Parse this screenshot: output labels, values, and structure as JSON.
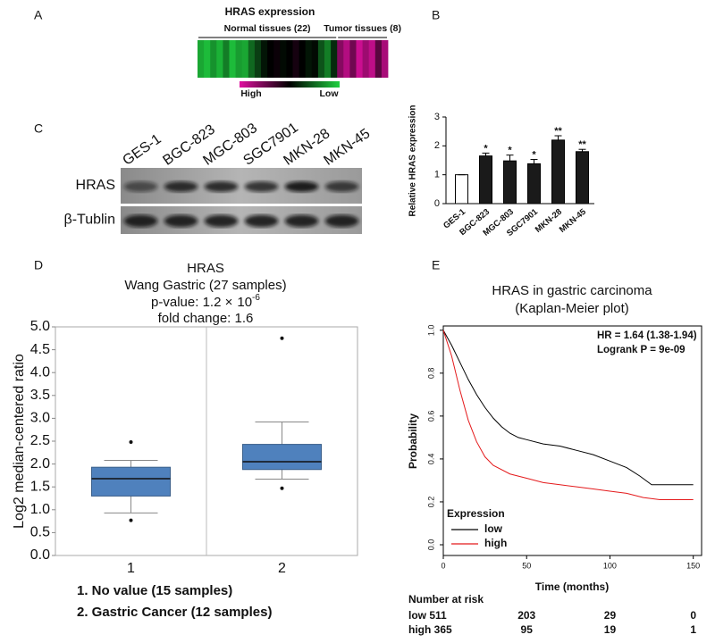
{
  "panel_labels": [
    "A",
    "B",
    "C",
    "D",
    "E"
  ],
  "blot": {
    "lanes": [
      "GES-1",
      "BGC-823",
      "MGC-803",
      "SGC7901",
      "MKN-28",
      "MKN-45"
    ],
    "rows": [
      "HRAS",
      "β-Tublin"
    ]
  },
  "chart_data": [
    {
      "type": "heatmap",
      "title": "HRAS expression",
      "groups": [
        {
          "name": "Normal tissues (22)",
          "count": 22
        },
        {
          "name": "Tumor tissues (8)",
          "count": 8
        }
      ],
      "values": [
        -0.8,
        -0.9,
        -0.7,
        -0.85,
        -0.6,
        -0.9,
        -0.75,
        -0.8,
        -0.5,
        -0.3,
        -0.1,
        0,
        0.05,
        -0.05,
        0,
        0.1,
        0,
        -0.1,
        -0.05,
        -0.4,
        -0.6,
        -0.2,
        0.6,
        0.8,
        0.5,
        0.9,
        0.7,
        0.85,
        0.4,
        0.75
      ],
      "colorbar_labels": [
        "High",
        "Low"
      ],
      "high_color": "#e010a0",
      "low_color": "#20d040"
    },
    {
      "type": "bar",
      "ylabel": "Relative HRAS expression",
      "categories": [
        "GES-1",
        "BGC-823",
        "MGC-803",
        "SGC7901",
        "MKN-28",
        "MKN-45"
      ],
      "values": [
        1,
        1.65,
        1.48,
        1.38,
        2.2,
        1.8
      ],
      "errors": [
        0,
        0.1,
        0.2,
        0.15,
        0.15,
        0.08
      ],
      "annotations": [
        null,
        "*",
        "*",
        "*",
        "**",
        "**"
      ],
      "colors": [
        "#ffffff",
        "#1a1a1a",
        "#1a1a1a",
        "#1a1a1a",
        "#1a1a1a",
        "#1a1a1a"
      ],
      "ylim": [
        0,
        3
      ],
      "yticks": [
        0,
        1,
        2,
        3
      ]
    },
    {
      "type": "box",
      "title": [
        "HRAS",
        "Wang Gastric (27 samples)"
      ],
      "pvalue": {
        "text": "p-value: 1.2 ×",
        "base": "10",
        "exponent": "-6"
      },
      "fold_change": "fold change: 1.6",
      "ylabel": "Log2 median-centered ratio",
      "categories": [
        "1",
        "2"
      ],
      "boxes": [
        {
          "whislo": 0.93,
          "q1": 1.3,
          "med": 1.68,
          "q3": 1.93,
          "whishi": 2.08,
          "fliers": [
            0.77,
            2.48
          ]
        },
        {
          "whislo": 1.67,
          "q1": 1.88,
          "med": 2.05,
          "q3": 2.43,
          "whishi": 2.92,
          "fliers": [
            1.47,
            4.75
          ]
        }
      ],
      "color": "#4f81bd",
      "ylim": [
        0,
        5
      ],
      "yticks": [
        {
          "value": 0,
          "label": "0.0"
        },
        {
          "value": 0.5,
          "label": "0.5"
        },
        {
          "value": 1,
          "label": "1.0"
        },
        {
          "value": 1.5,
          "label": "1.5"
        },
        {
          "value": 2,
          "label": "2.0"
        },
        {
          "value": 2.5,
          "label": "2.5"
        },
        {
          "value": 3,
          "label": "3.0"
        },
        {
          "value": 3.5,
          "label": "3.5"
        },
        {
          "value": 4,
          "label": "4.0"
        },
        {
          "value": 4.5,
          "label": "4.5"
        },
        {
          "value": 5,
          "label": "5.0"
        }
      ],
      "notes": [
        "1.  No value (15 samples)",
        "2.  Gastric Cancer (12 samples)"
      ]
    },
    {
      "type": "line",
      "title": [
        "HRAS in gastric carcinoma",
        "(Kaplan-Meier plot)"
      ],
      "annotations": [
        "HR = 1.64 (1.38-1.94)",
        "Logrank P = 9e-09"
      ],
      "xlabel": "Time (months)",
      "ylabel": "Probability",
      "xlim": [
        0,
        155
      ],
      "xticks": [
        0,
        50,
        100,
        150
      ],
      "ylim": [
        -0.05,
        1.02
      ],
      "yticks": [
        {
          "value": 0,
          "label": "0.0"
        },
        {
          "value": 0.2,
          "label": "0.2"
        },
        {
          "value": 0.4,
          "label": "0.4"
        },
        {
          "value": 0.6,
          "label": "0.6"
        },
        {
          "value": 0.8,
          "label": "0.8"
        },
        {
          "value": 1,
          "label": "1.0"
        }
      ],
      "legend_title": "Expression",
      "series": [
        {
          "name": "low",
          "color": "#000000",
          "x": [
            0,
            5,
            10,
            15,
            20,
            25,
            30,
            35,
            40,
            45,
            50,
            60,
            70,
            80,
            90,
            100,
            110,
            118,
            125,
            150
          ],
          "values": [
            1.0,
            0.93,
            0.85,
            0.77,
            0.7,
            0.64,
            0.59,
            0.55,
            0.52,
            0.5,
            0.49,
            0.47,
            0.46,
            0.44,
            0.42,
            0.39,
            0.36,
            0.32,
            0.28,
            0.28
          ]
        },
        {
          "name": "high",
          "color": "#e41a1c",
          "x": [
            0,
            5,
            10,
            15,
            20,
            25,
            30,
            40,
            50,
            60,
            70,
            80,
            90,
            100,
            110,
            120,
            130,
            150
          ],
          "values": [
            1.0,
            0.88,
            0.72,
            0.58,
            0.48,
            0.41,
            0.37,
            0.33,
            0.31,
            0.29,
            0.28,
            0.27,
            0.26,
            0.25,
            0.24,
            0.22,
            0.21,
            0.21
          ]
        }
      ],
      "risk_table": {
        "title": "Number at risk",
        "rows": [
          {
            "label": "low 511",
            "values": [
              203,
              29,
              0
            ],
            "color": "#000000"
          },
          {
            "label": "high 365",
            "values": [
              95,
              19,
              1
            ],
            "color": "#e41a1c"
          }
        ]
      }
    }
  ]
}
